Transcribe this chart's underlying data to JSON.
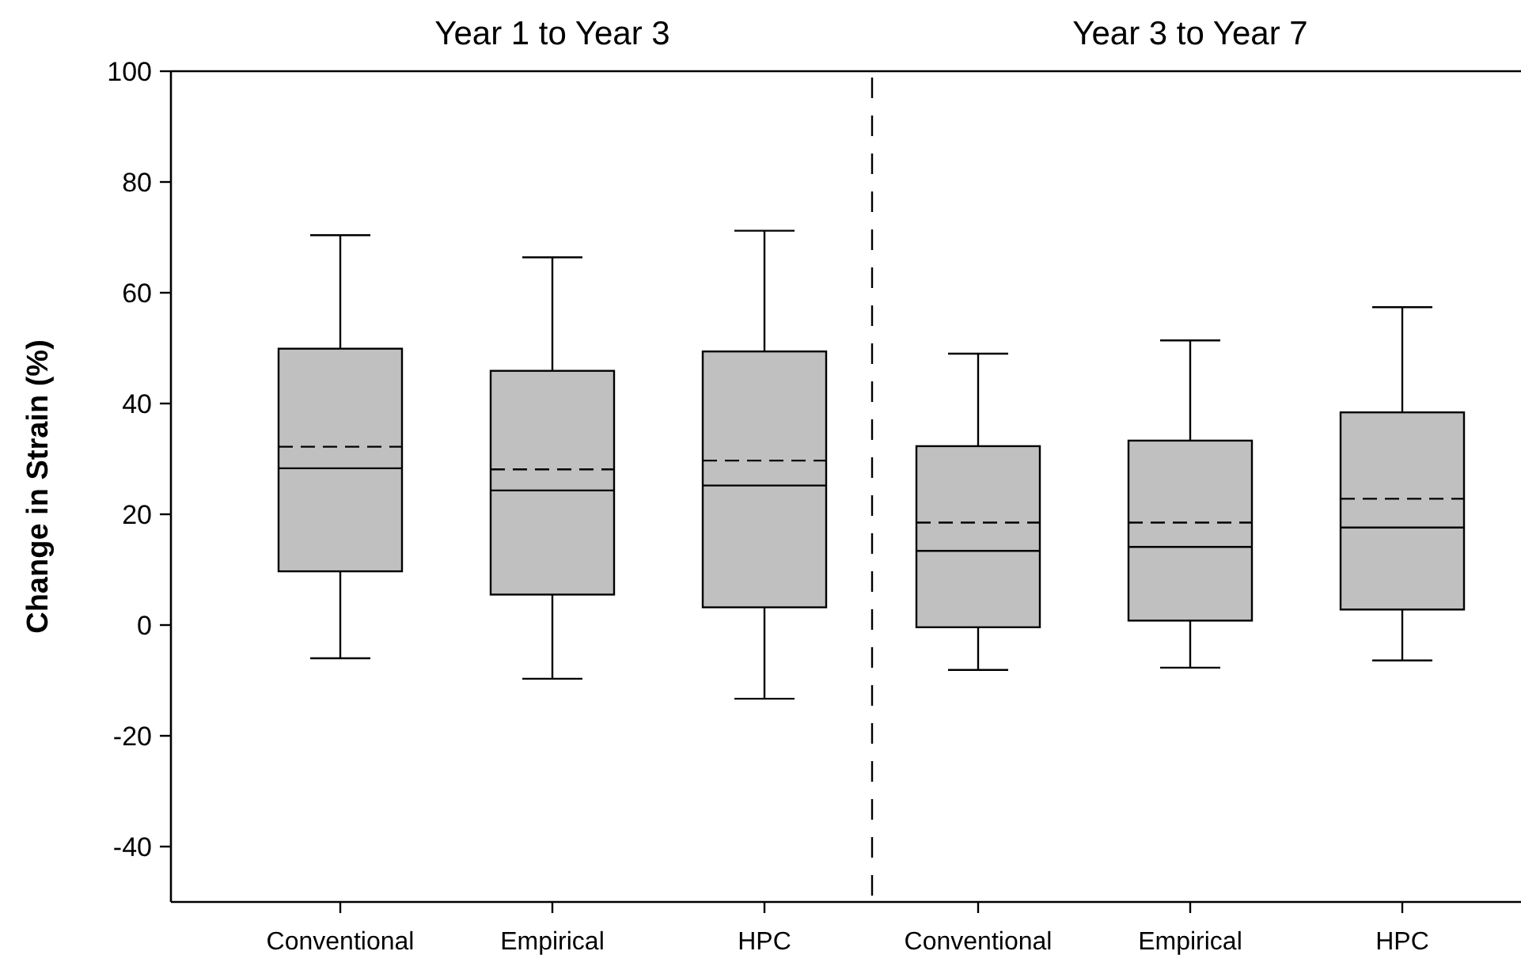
{
  "chart_data": [
    {
      "type": "box",
      "title": "Year 1 to Year 3",
      "ylabel": "Change in Strain (%)",
      "categories": [
        "Conventional",
        "Empirical",
        "HPC"
      ],
      "ylim": [
        -50,
        100
      ],
      "yticks": [
        -40,
        -20,
        0,
        20,
        40,
        60,
        80,
        100
      ],
      "color": "#c0c0c0",
      "boxes": [
        {
          "low": -6.0,
          "q1": 9.7,
          "median": 28.3,
          "q3": 49.9,
          "high": 70.4,
          "mean": 32.2
        },
        {
          "low": -9.7,
          "q1": 5.5,
          "median": 24.3,
          "q3": 45.9,
          "high": 66.4,
          "mean": 28.1
        },
        {
          "low": -13.3,
          "q1": 3.2,
          "median": 25.2,
          "q3": 49.4,
          "high": 71.2,
          "mean": 29.7
        }
      ]
    },
    {
      "type": "box",
      "title": "Year 3 to Year 7",
      "categories": [
        "Conventional",
        "Empirical",
        "HPC"
      ],
      "ylim": [
        -50,
        100
      ],
      "yticks": [
        -40,
        -20,
        0,
        20,
        40,
        60,
        80,
        100
      ],
      "tick_labels": "x",
      "color": "#c0c0c0",
      "boxes": [
        {
          "low": -8.1,
          "q1": -0.4,
          "median": 13.4,
          "q3": 32.3,
          "high": 49.0,
          "mean": 18.5
        },
        {
          "low": -7.7,
          "q1": 0.8,
          "median": 14.1,
          "q3": 33.3,
          "high": 51.4,
          "mean": 18.5
        },
        {
          "low": -6.4,
          "q1": 2.8,
          "median": 17.6,
          "q3": 38.4,
          "high": 57.4,
          "mean": 22.8
        }
      ]
    }
  ]
}
